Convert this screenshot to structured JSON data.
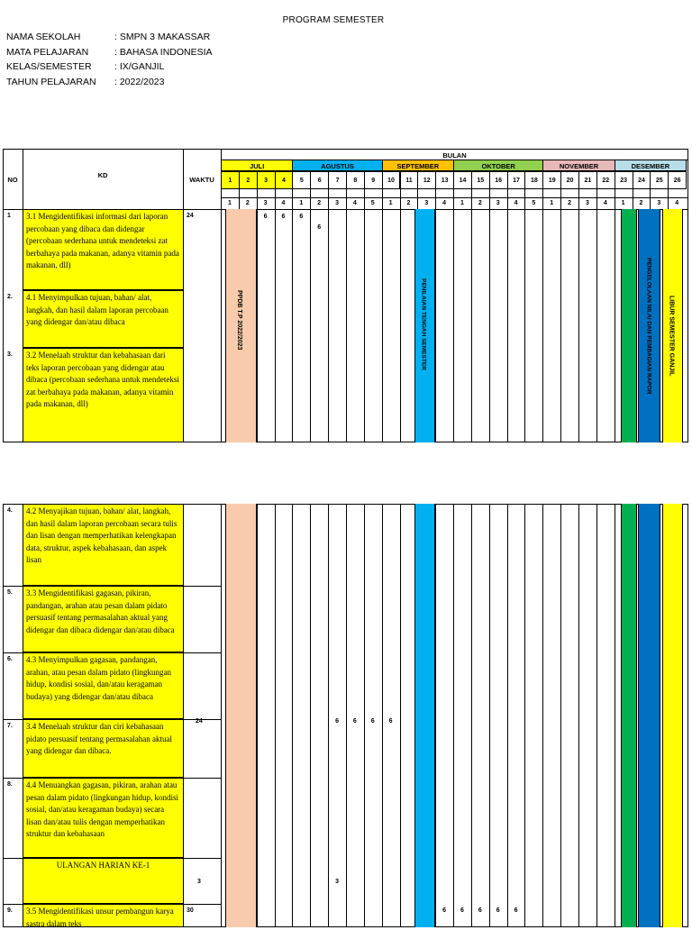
{
  "title": "PROGRAM SEMESTER",
  "info": [
    {
      "label": "NAMA SEKOLAH",
      "value": ": SMPN 3 MAKASSAR"
    },
    {
      "label": "MATA PELAJARAN",
      "value": ": BAHASA INDONESIA"
    },
    {
      "label": "KELAS/SEMESTER",
      "value": ": IX/GANJIL"
    },
    {
      "label": "TAHUN PELAJARAN",
      "value": ": 2022/2023"
    }
  ],
  "headers": {
    "no": "NO",
    "kd": "KD",
    "waktu": "WAKTU",
    "bulan": "BULAN"
  },
  "months": [
    {
      "name": "JULI",
      "color": "#ffff00"
    },
    {
      "name": "AGUSTUS",
      "color": "#00b0f0"
    },
    {
      "name": "SEPTEMBER",
      "color": "#ffc000"
    },
    {
      "name": "OKTOBER",
      "color": "#92d050"
    },
    {
      "name": "NOVEMBER",
      "color": "#e6b8b7"
    },
    {
      "name": "DESEMBER",
      "color": "#b7dde8"
    }
  ],
  "weeks": [
    "1",
    "2",
    "3",
    "4",
    "5",
    "6",
    "7",
    "8",
    "9",
    "10",
    "11",
    "12",
    "13",
    "14",
    "15",
    "16",
    "17",
    "18",
    "19",
    "20",
    "21",
    "22",
    "23",
    "24",
    "25",
    "26"
  ],
  "week_sub": [
    "1",
    "2",
    "3",
    "4",
    "1",
    "2",
    "3",
    "4",
    "5",
    "1",
    "2",
    "3",
    "4",
    "1",
    "2",
    "3",
    "4",
    "5",
    "1",
    "2",
    "3",
    "4",
    "1",
    "2",
    "3",
    "4"
  ],
  "rows1": [
    {
      "no": "1",
      "kd": "3.1  Mengidentifikasi informasi dari laporan percobaan yang dibaca dan didengar (percobaan sederhana untuk mendeteksi zat berbahaya pada makanan, adanya vitamin pada makanan, dll)",
      "waktu": "24"
    },
    {
      "no": "2.",
      "kd": "4.1  Menyimpulkan tujuan, bahan/ alat, langkah, dan hasil dalam laporan percobaan yang didengar dan/atau dibaca",
      "waktu": ""
    },
    {
      "no": "3.",
      "kd": "3.2  Menelaah struktur dan kebahasaan dari teks laporan percobaan yang didengar atau dibaca (percobaan sederhana untuk mendeteksi zat berbahaya pada makanan, adanya vitamin pada makanan, dll)",
      "waktu": ""
    }
  ],
  "rows2": [
    {
      "no": "4.",
      "kd": "4.2  Menyajikan tujuan, bahan/ alat, langkah, dan hasil dalam laporan percobaan secara tulis dan lisan dengan memperhatikan kelengkapan data, struktur, aspek kebahasaan, dan aspek lisan"
    },
    {
      "no": "5.",
      "kd": "3.3 Mengidentifikasi gagasan, pikiran, pandangan, arahan atau pesan dalam pidato persuasif tentang permasalahan aktual yang didengar dan dibaca didengar dan/atau dibaca"
    },
    {
      "no": "6.",
      "kd": "4.3 Menyimpulkan gagasan, pandangan, arahan, atau pesan dalam pidato (lingkungan hidup, kondisi sosial, dan/atau keragaman budaya) yang didengar dan/atau dibaca"
    },
    {
      "no": "7.",
      "kd": "3.4 Menelaah struktur dan ciri kebahasaan pidato persuasif tentang permasalahan aktual yang didengar dan dibaca."
    },
    {
      "no": "8.",
      "kd": "4.4  Menuangkan gagasan, pikiran, arahan atau pesan dalam pidato (lingkungan hidup, kondisi sosial, dan/atau keragaman budaya) secara lisan dan/atau tulis dengan memperhatikan struktur dan kebahasaan"
    },
    {
      "no": "",
      "kd": "ULANGAN HARIAN KE-1"
    },
    {
      "no": "9.",
      "kd": "3.5 Mengidentifikasi unsur pembangun karya sastra dalam teks"
    }
  ],
  "waktu2": [
    "24",
    "3",
    "30"
  ],
  "labels": {
    "ppdb": "PPDB T.P 2022/2023",
    "pts": "PENILAIAN TENGAH SEMESTER",
    "rapor": "PENGELOLAAN NILAI DAN PEMBAGIAN RAPOR",
    "libur": "LIBUR SEMESTER GANJIL"
  },
  "six": "6",
  "three": "3",
  "colors": {
    "ppdb": "#f8cbad",
    "pts": "#00b0f0",
    "green": "#00b050",
    "blue": "#0070c0",
    "yellow": "#ffff00"
  }
}
